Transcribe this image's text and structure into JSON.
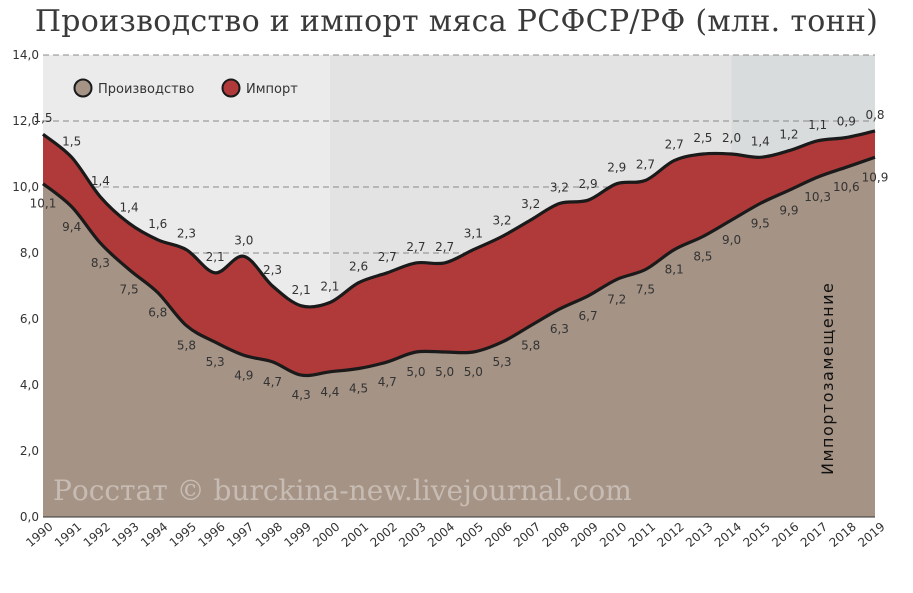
{
  "chart_data": {
    "type": "area",
    "title": "Производство и импорт мяса РСФСР/РФ (млн. тонн)",
    "x": [
      1990,
      1991,
      1992,
      1993,
      1994,
      1995,
      1996,
      1997,
      1998,
      1999,
      2000,
      2001,
      2002,
      2003,
      2004,
      2005,
      2006,
      2007,
      2008,
      2009,
      2010,
      2011,
      2012,
      2013,
      2014,
      2015,
      2016,
      2017,
      2018,
      2019
    ],
    "series": [
      {
        "name": "Производство",
        "color": "#a59385",
        "values": [
          10.1,
          9.4,
          8.3,
          7.5,
          6.8,
          5.8,
          5.3,
          4.9,
          4.7,
          4.3,
          4.4,
          4.5,
          4.7,
          5.0,
          5.0,
          5.0,
          5.3,
          5.8,
          6.3,
          6.7,
          7.2,
          7.5,
          8.1,
          8.5,
          9.0,
          9.5,
          9.9,
          10.3,
          10.6,
          10.9
        ]
      },
      {
        "name": "Импорт",
        "color": "#b03a3a",
        "values": [
          1.5,
          1.5,
          1.4,
          1.4,
          1.6,
          2.3,
          2.1,
          3.0,
          2.3,
          2.1,
          2.1,
          2.6,
          2.7,
          2.7,
          2.7,
          3.1,
          3.2,
          3.2,
          3.2,
          2.9,
          2.9,
          2.7,
          2.7,
          2.5,
          2.0,
          1.4,
          1.2,
          1.1,
          0.9,
          0.8
        ]
      }
    ],
    "production_labels": [
      "10,1",
      "9,4",
      "8,3",
      "7,5",
      "6,8",
      "5,8",
      "5,3",
      "4,9",
      "4,7",
      "4,3",
      "4,4",
      "4,5",
      "4,7",
      "5,0",
      "5,0",
      "5,0",
      "5,3",
      "5,8",
      "6,3",
      "6,7",
      "7,2",
      "7,5",
      "8,1",
      "8,5",
      "9,0",
      "9,5",
      "9,9",
      "10,3",
      "10,6",
      "10,9"
    ],
    "import_labels": [
      "1,5",
      "1,5",
      "1,4",
      "1,4",
      "1,6",
      "2,3",
      "2,1",
      "3,0",
      "2,3",
      "2,1",
      "2,1",
      "2,6",
      "2,7",
      "2,7",
      "2,7",
      "3,1",
      "3,2",
      "3,2",
      "3,2",
      "2,9",
      "2,9",
      "2,7",
      "2,7",
      "2,5",
      "2,0",
      "1,4",
      "1,2",
      "1,1",
      "0,9",
      "0,8"
    ],
    "y_ticks": [
      "0,0",
      "2,0",
      "4,0",
      "6,0",
      "8,0",
      "10,0",
      "12,0",
      "14,0"
    ],
    "ylim": [
      0,
      14
    ],
    "grid": true,
    "legend_position": "top-left",
    "annotation": "Импортозамещение",
    "watermark": "Росстат © burckina-new.livejournal.com",
    "colors": {
      "line": "#1a1a1a",
      "period1": "#ebebeb",
      "period2": "#e3e3e3",
      "period3": "#d8dcdc"
    }
  }
}
